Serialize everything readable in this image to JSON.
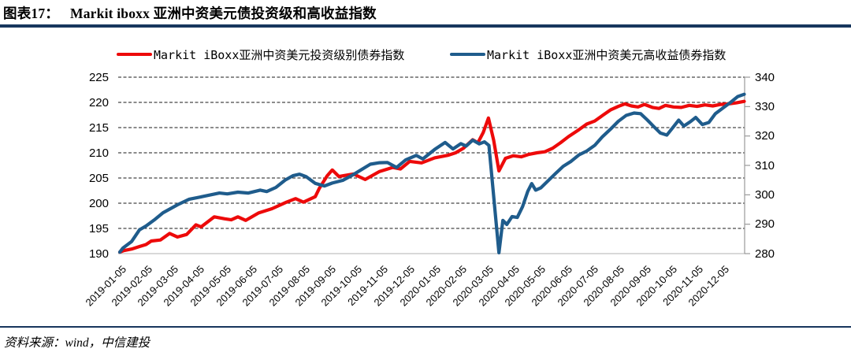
{
  "header": {
    "prefix": "图表17：",
    "title": "Markit iboxx 亚洲中资美元债投资级和高收益指数"
  },
  "source_note": "资料来源：wind，中信建投",
  "colors": {
    "ig_red": "#ED0A0A",
    "hy_blue": "#1F5C8C",
    "rule_navy": "#17365D",
    "gridline": "#1a1a1a",
    "baseline_gray": "#C0C0C0",
    "right_axis_gray": "#9a9a9a"
  },
  "chart_data": {
    "type": "line",
    "title": "Markit iboxx 亚洲中资美元债投资级和高收益指数",
    "x_unit": "months since 2019-01-05 (labels = monthly dates)",
    "x_tick_labels": [
      "2019-01-05",
      "2019-02-05",
      "2019-03-05",
      "2019-04-05",
      "2019-05-05",
      "2019-06-05",
      "2019-07-05",
      "2019-08-05",
      "2019-09-05",
      "2019-10-05",
      "2019-11-05",
      "2019-12-05",
      "2020-01-05",
      "2020-02-05",
      "2020-03-05",
      "2020-04-05",
      "2020-05-05",
      "2020-06-05",
      "2020-07-05",
      "2020-08-05",
      "2020-09-05",
      "2020-10-05",
      "2020-11-05",
      "2020-12-05"
    ],
    "left_axis": {
      "min": 190,
      "max": 225,
      "step": 5,
      "ticks": [
        225,
        220,
        215,
        210,
        205,
        200,
        195,
        190
      ]
    },
    "right_axis": {
      "min": 280,
      "max": 340,
      "step": 10,
      "ticks": [
        340,
        330,
        320,
        310,
        300,
        290,
        280
      ]
    },
    "grid": "horizontal dashed",
    "legend_position": "top",
    "series": [
      {
        "name": "Markit iBoxx亚洲中资美元投资级别债券指数",
        "axis": "left",
        "color": "#ED0A0A",
        "points": [
          [
            0,
            190.3
          ],
          [
            0.15,
            190.6
          ],
          [
            0.45,
            190.9
          ],
          [
            0.75,
            191.4
          ],
          [
            1.0,
            191.8
          ],
          [
            1.2,
            192.5
          ],
          [
            1.55,
            192.7
          ],
          [
            1.9,
            194.0
          ],
          [
            2.2,
            193.3
          ],
          [
            2.55,
            193.8
          ],
          [
            2.9,
            195.7
          ],
          [
            3.1,
            195.3
          ],
          [
            3.6,
            197.3
          ],
          [
            4.0,
            196.9
          ],
          [
            4.25,
            196.7
          ],
          [
            4.5,
            197.3
          ],
          [
            4.8,
            196.6
          ],
          [
            5.3,
            198.1
          ],
          [
            5.8,
            198.9
          ],
          [
            6.35,
            200.2
          ],
          [
            6.7,
            200.9
          ],
          [
            7.0,
            200.2
          ],
          [
            7.45,
            201.3
          ],
          [
            7.6,
            202.9
          ],
          [
            7.9,
            205.4
          ],
          [
            8.1,
            206.6
          ],
          [
            8.35,
            205.3
          ],
          [
            8.9,
            205.8
          ],
          [
            9.35,
            204.7
          ],
          [
            9.9,
            206.3
          ],
          [
            10.4,
            207.1
          ],
          [
            10.7,
            206.8
          ],
          [
            11.05,
            208.3
          ],
          [
            11.5,
            208.0
          ],
          [
            12.0,
            209.0
          ],
          [
            12.5,
            209.5
          ],
          [
            12.8,
            210.0
          ],
          [
            13.1,
            210.9
          ],
          [
            13.45,
            212.6
          ],
          [
            13.65,
            212.0
          ],
          [
            13.85,
            214.0
          ],
          [
            14.05,
            216.9
          ],
          [
            14.25,
            212.5
          ],
          [
            14.45,
            206.4
          ],
          [
            14.7,
            208.9
          ],
          [
            15.0,
            209.4
          ],
          [
            15.3,
            209.2
          ],
          [
            15.6,
            209.7
          ],
          [
            15.9,
            210.0
          ],
          [
            16.2,
            210.2
          ],
          [
            16.5,
            210.9
          ],
          [
            16.8,
            212.0
          ],
          [
            17.1,
            213.2
          ],
          [
            17.5,
            214.6
          ],
          [
            17.8,
            215.7
          ],
          [
            18.1,
            216.3
          ],
          [
            18.4,
            217.4
          ],
          [
            18.7,
            218.5
          ],
          [
            19.0,
            219.2
          ],
          [
            19.25,
            219.7
          ],
          [
            19.5,
            219.3
          ],
          [
            19.75,
            219.1
          ],
          [
            20.0,
            219.6
          ],
          [
            20.3,
            219.0
          ],
          [
            20.55,
            218.8
          ],
          [
            20.8,
            219.4
          ],
          [
            21.1,
            219.1
          ],
          [
            21.4,
            219.0
          ],
          [
            21.7,
            219.4
          ],
          [
            22.0,
            219.2
          ],
          [
            22.3,
            219.5
          ],
          [
            22.6,
            219.3
          ],
          [
            22.9,
            219.6
          ],
          [
            23.2,
            219.7
          ],
          [
            23.5,
            219.9
          ],
          [
            23.8,
            220.2
          ]
        ]
      },
      {
        "name": "Markit iBoxx亚洲中资美元高收益债券指数",
        "axis": "right",
        "color": "#1F5C8C",
        "points": [
          [
            0,
            280.5
          ],
          [
            0.12,
            281.9
          ],
          [
            0.45,
            284.1
          ],
          [
            0.75,
            288.1
          ],
          [
            1.0,
            289.4
          ],
          [
            1.35,
            291.7
          ],
          [
            1.65,
            293.9
          ],
          [
            2.2,
            296.6
          ],
          [
            2.65,
            298.5
          ],
          [
            3.15,
            299.4
          ],
          [
            3.8,
            300.6
          ],
          [
            4.1,
            300.3
          ],
          [
            4.5,
            300.9
          ],
          [
            4.9,
            300.6
          ],
          [
            5.35,
            301.6
          ],
          [
            5.6,
            301.1
          ],
          [
            5.95,
            302.5
          ],
          [
            6.3,
            305.0
          ],
          [
            6.6,
            306.5
          ],
          [
            6.85,
            307.0
          ],
          [
            7.1,
            306.2
          ],
          [
            7.45,
            303.9
          ],
          [
            7.8,
            303.0
          ],
          [
            8.1,
            304.0
          ],
          [
            8.5,
            304.9
          ],
          [
            8.85,
            306.6
          ],
          [
            9.2,
            308.5
          ],
          [
            9.55,
            310.4
          ],
          [
            9.9,
            310.9
          ],
          [
            10.2,
            311.0
          ],
          [
            10.55,
            309.3
          ],
          [
            10.9,
            311.9
          ],
          [
            11.3,
            313.4
          ],
          [
            11.55,
            312.2
          ],
          [
            12.0,
            315.4
          ],
          [
            12.4,
            317.8
          ],
          [
            12.7,
            315.6
          ],
          [
            13.0,
            317.4
          ],
          [
            13.2,
            316.6
          ],
          [
            13.45,
            318.6
          ],
          [
            13.7,
            317.3
          ],
          [
            13.9,
            318.0
          ],
          [
            14.07,
            316.8
          ],
          [
            14.45,
            280.3
          ],
          [
            14.6,
            291.3
          ],
          [
            14.75,
            289.9
          ],
          [
            14.95,
            292.6
          ],
          [
            15.15,
            292.3
          ],
          [
            15.35,
            296.0
          ],
          [
            15.55,
            301.2
          ],
          [
            15.7,
            303.8
          ],
          [
            15.85,
            301.6
          ],
          [
            16.05,
            302.4
          ],
          [
            16.3,
            304.6
          ],
          [
            16.6,
            307.2
          ],
          [
            16.9,
            309.7
          ],
          [
            17.2,
            311.4
          ],
          [
            17.5,
            313.6
          ],
          [
            17.8,
            314.9
          ],
          [
            18.1,
            316.8
          ],
          [
            18.4,
            319.8
          ],
          [
            18.7,
            322.3
          ],
          [
            19.0,
            325.0
          ],
          [
            19.3,
            327.0
          ],
          [
            19.6,
            327.8
          ],
          [
            19.85,
            327.6
          ],
          [
            20.1,
            325.5
          ],
          [
            20.35,
            323.2
          ],
          [
            20.6,
            321.0
          ],
          [
            20.85,
            320.3
          ],
          [
            21.1,
            323.1
          ],
          [
            21.3,
            325.4
          ],
          [
            21.5,
            323.4
          ],
          [
            21.75,
            324.9
          ],
          [
            21.95,
            326.3
          ],
          [
            22.2,
            323.9
          ],
          [
            22.45,
            324.6
          ],
          [
            22.7,
            327.6
          ],
          [
            23.0,
            329.6
          ],
          [
            23.3,
            331.6
          ],
          [
            23.55,
            333.4
          ],
          [
            23.8,
            334.2
          ]
        ]
      }
    ]
  }
}
